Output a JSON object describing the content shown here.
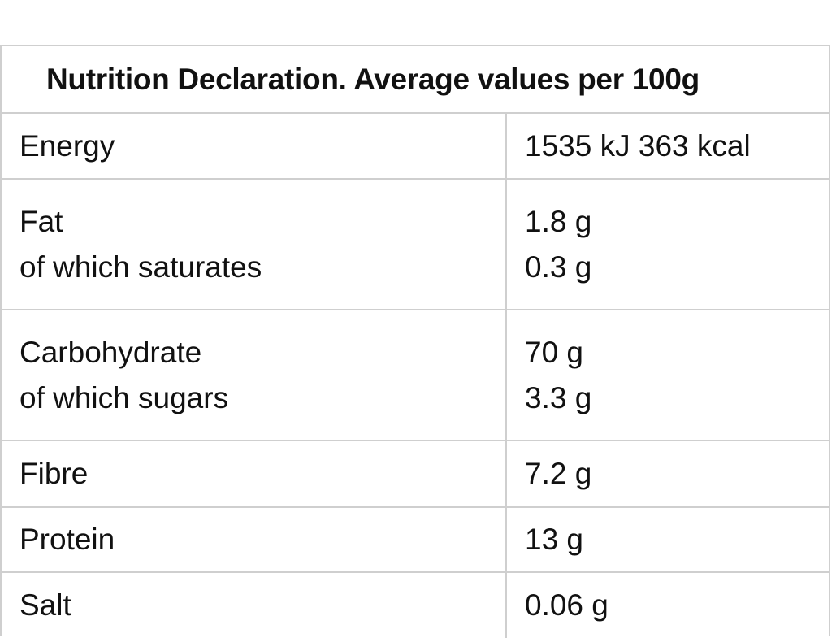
{
  "title": "Nutrition Declaration. Average values per 100g",
  "rows": [
    {
      "labels": [
        "Energy"
      ],
      "values": [
        "1535 kJ 363 kcal"
      ]
    },
    {
      "labels": [
        "Fat",
        "of which saturates"
      ],
      "values": [
        "1.8 g",
        "0.3 g"
      ]
    },
    {
      "labels": [
        "Carbohydrate",
        "of which sugars"
      ],
      "values": [
        "70 g",
        "3.3 g"
      ]
    },
    {
      "labels": [
        "Fibre"
      ],
      "values": [
        "7.2 g"
      ]
    },
    {
      "labels": [
        "Protein"
      ],
      "values": [
        "13 g"
      ]
    },
    {
      "labels": [
        "Salt"
      ],
      "values": [
        "0.06 g"
      ]
    }
  ]
}
